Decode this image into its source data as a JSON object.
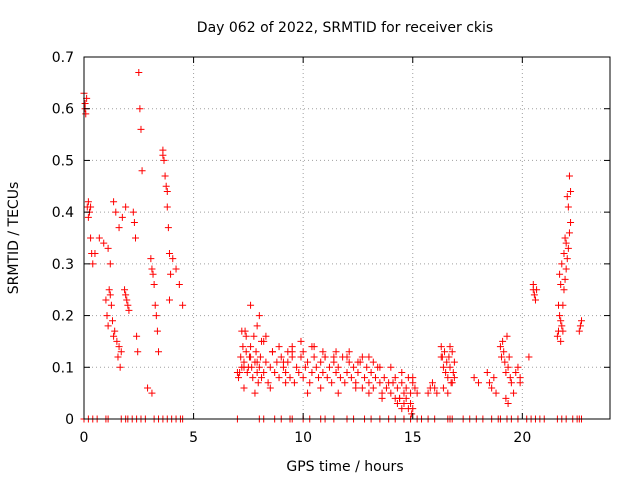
{
  "chart_data": {
    "type": "scatter",
    "title": "Day 062 of 2022, SRMTID for receiver ckis",
    "xlabel": "GPS time / hours",
    "ylabel": "SRMTID / TECUs",
    "xlim": [
      0,
      24
    ],
    "ylim": [
      0,
      0.7
    ],
    "xticks": [
      0,
      5,
      10,
      15,
      20
    ],
    "yticks": [
      0,
      0.1,
      0.2,
      0.3,
      0.4,
      0.5,
      0.6,
      0.7
    ],
    "grid": true,
    "marker": "plus",
    "colors": {
      "series": "#ff0000",
      "grid": "#a0a0a0",
      "axis": "#000000"
    },
    "series": [
      {
        "name": "SRMTID",
        "x": [
          0.0,
          0.05,
          0.05,
          0.08,
          0.12,
          0.15,
          0.2,
          0.25,
          0.3,
          0.35,
          0.4,
          0.2,
          0.3,
          0.5,
          0.7,
          0.9,
          1.1,
          1.2,
          1.35,
          1.45,
          1.6,
          1.75,
          1.9,
          1.0,
          1.05,
          1.1,
          1.15,
          1.2,
          1.25,
          1.3,
          1.35,
          1.4,
          1.5,
          1.55,
          1.6,
          1.65,
          1.7,
          1.85,
          1.9,
          1.95,
          2.0,
          2.05,
          2.25,
          2.3,
          2.35,
          2.4,
          2.45,
          2.5,
          2.55,
          2.6,
          2.65,
          2.9,
          3.1,
          3.05,
          3.1,
          3.15,
          3.2,
          3.25,
          3.3,
          3.35,
          3.4,
          3.6,
          3.65,
          3.7,
          3.75,
          3.8,
          3.85,
          3.9,
          3.95,
          3.9,
          3.6,
          3.8,
          4.05,
          4.2,
          4.35,
          4.5,
          7.0,
          7.3,
          7.6,
          7.9,
          8.2,
          8.6,
          9.1,
          9.5,
          7.05,
          7.1,
          7.15,
          7.2,
          7.25,
          7.3,
          7.35,
          7.4,
          7.45,
          7.5,
          7.55,
          7.6,
          7.65,
          7.7,
          7.75,
          7.8,
          7.85,
          7.9,
          7.95,
          8.0,
          8.05,
          8.1,
          8.2,
          8.3,
          8.4,
          8.5,
          8.6,
          8.7,
          8.8,
          8.9,
          9.0,
          9.1,
          9.2,
          9.3,
          9.4,
          9.5,
          9.6,
          9.7,
          9.8,
          9.9,
          10.0,
          10.1,
          10.2,
          10.3,
          10.4,
          10.5,
          10.6,
          10.7,
          10.8,
          10.9,
          11.0,
          11.1,
          11.2,
          11.3,
          11.4,
          11.5,
          11.6,
          11.7,
          11.8,
          11.9,
          12.0,
          12.1,
          12.2,
          12.3,
          12.4,
          12.5,
          12.6,
          12.7,
          12.8,
          12.9,
          13.0,
          13.1,
          13.2,
          13.3,
          13.4,
          13.5,
          13.6,
          13.7,
          13.8,
          13.9,
          14.0,
          14.1,
          14.2,
          14.3,
          14.4,
          14.5,
          14.6,
          14.7,
          14.8,
          14.9,
          15.0,
          15.1,
          7.2,
          7.4,
          7.6,
          7.9,
          8.0,
          8.1,
          8.3,
          8.9,
          9.3,
          9.9,
          10.4,
          10.9,
          11.4,
          12.1,
          12.7,
          13.2,
          7.3,
          7.8,
          8.5,
          9.2,
          10.2,
          10.8,
          11.6,
          12.4,
          13.0,
          13.6,
          14.2,
          14.6,
          14.3,
          14.5,
          14.7,
          14.9,
          15.0,
          15.2,
          14.8,
          14.4,
          14.95,
          9.5,
          10.0,
          10.5,
          11.0,
          11.5,
          12.0,
          12.5,
          13.0,
          13.5,
          14.0,
          14.5,
          15.0,
          15.7,
          15.8,
          15.9,
          16.0,
          16.1,
          16.3,
          16.35,
          16.4,
          16.45,
          16.5,
          16.55,
          16.6,
          16.65,
          16.7,
          16.75,
          16.8,
          16.85,
          16.9,
          16.4,
          16.6,
          16.8,
          16.3,
          16.7,
          16.9,
          17.8,
          18.0,
          18.4,
          18.5,
          18.6,
          18.7,
          18.8,
          19.0,
          19.05,
          19.1,
          19.15,
          19.2,
          19.25,
          19.3,
          19.35,
          19.4,
          19.45,
          19.5,
          19.6,
          19.25,
          19.35,
          19.7,
          19.8,
          19.9,
          19.9,
          20.3,
          20.5,
          20.5,
          20.55,
          20.6,
          20.65,
          21.6,
          21.65,
          21.7,
          21.75,
          21.8,
          21.85,
          21.9,
          21.95,
          22.0,
          22.05,
          22.1,
          22.15,
          22.2,
          21.75,
          21.85,
          21.7,
          21.8,
          21.9,
          22.0,
          22.1,
          22.2,
          21.65,
          21.75,
          21.95,
          22.05,
          22.15,
          22.6,
          22.65,
          22.7,
          0.0,
          0.2,
          0.4,
          0.6,
          1.0,
          1.1,
          1.7,
          1.9,
          2.0,
          2.2,
          2.4,
          2.6,
          2.8,
          3.2,
          3.4,
          3.6,
          3.8,
          4.0,
          4.2,
          4.4,
          4.5,
          7.0,
          8.0,
          8.2,
          8.7,
          9.0,
          9.4,
          9.5,
          10.0,
          10.3,
          10.8,
          11.0,
          11.4,
          12.0,
          12.3,
          12.8,
          13.1,
          13.5,
          13.9,
          14.2,
          14.6,
          14.9,
          15.2,
          15.4,
          15.7,
          16.0,
          16.6,
          16.7,
          16.8,
          17.3,
          17.6,
          17.9,
          18.2,
          18.6,
          18.9,
          19.0,
          19.3,
          19.5,
          19.8,
          20.2,
          20.4,
          20.6,
          20.8,
          21.0,
          21.6,
          21.8,
          22.0,
          22.3,
          22.5,
          22.6,
          22.7
        ],
        "y": [
          0.63,
          0.6,
          0.61,
          0.59,
          0.62,
          0.41,
          0.42,
          0.4,
          0.35,
          0.32,
          0.3,
          0.39,
          0.41,
          0.32,
          0.35,
          0.34,
          0.33,
          0.3,
          0.42,
          0.4,
          0.37,
          0.39,
          0.41,
          0.23,
          0.2,
          0.18,
          0.25,
          0.24,
          0.22,
          0.19,
          0.16,
          0.17,
          0.15,
          0.12,
          0.14,
          0.1,
          0.13,
          0.25,
          0.24,
          0.23,
          0.22,
          0.21,
          0.4,
          0.38,
          0.35,
          0.16,
          0.13,
          0.67,
          0.6,
          0.56,
          0.48,
          0.06,
          0.05,
          0.31,
          0.29,
          0.28,
          0.26,
          0.22,
          0.2,
          0.17,
          0.13,
          0.51,
          0.5,
          0.47,
          0.45,
          0.41,
          0.37,
          0.32,
          0.28,
          0.23,
          0.52,
          0.44,
          0.31,
          0.29,
          0.26,
          0.22,
          0.09,
          0.1,
          0.12,
          0.11,
          0.15,
          0.13,
          0.11,
          0.12,
          0.08,
          0.09,
          0.12,
          0.1,
          0.14,
          0.11,
          0.17,
          0.13,
          0.09,
          0.1,
          0.12,
          0.14,
          0.1,
          0.08,
          0.16,
          0.11,
          0.13,
          0.09,
          0.07,
          0.1,
          0.12,
          0.08,
          0.09,
          0.11,
          0.07,
          0.1,
          0.13,
          0.09,
          0.11,
          0.08,
          0.12,
          0.1,
          0.09,
          0.11,
          0.08,
          0.13,
          0.07,
          0.1,
          0.09,
          0.12,
          0.08,
          0.1,
          0.11,
          0.07,
          0.09,
          0.12,
          0.1,
          0.08,
          0.11,
          0.09,
          0.12,
          0.08,
          0.1,
          0.07,
          0.11,
          0.09,
          0.1,
          0.08,
          0.12,
          0.07,
          0.09,
          0.11,
          0.08,
          0.1,
          0.07,
          0.09,
          0.11,
          0.06,
          0.08,
          0.1,
          0.07,
          0.09,
          0.06,
          0.08,
          0.1,
          0.07,
          0.05,
          0.08,
          0.06,
          0.07,
          0.05,
          0.07,
          0.08,
          0.06,
          0.04,
          0.07,
          0.05,
          0.06,
          0.08,
          0.05,
          0.07,
          0.06,
          0.17,
          0.16,
          0.22,
          0.18,
          0.2,
          0.15,
          0.16,
          0.14,
          0.13,
          0.15,
          0.14,
          0.13,
          0.12,
          0.13,
          0.12,
          0.11,
          0.06,
          0.05,
          0.06,
          0.07,
          0.05,
          0.06,
          0.05,
          0.06,
          0.05,
          0.04,
          0.04,
          0.03,
          0.03,
          0.02,
          0.04,
          0.03,
          0.02,
          0.05,
          0.02,
          0.04,
          0.01,
          0.14,
          0.13,
          0.14,
          0.12,
          0.13,
          0.12,
          0.11,
          0.12,
          0.1,
          0.1,
          0.09,
          0.08,
          0.05,
          0.06,
          0.07,
          0.06,
          0.05,
          0.14,
          0.12,
          0.1,
          0.13,
          0.09,
          0.11,
          0.08,
          0.12,
          0.1,
          0.07,
          0.13,
          0.09,
          0.11,
          0.06,
          0.05,
          0.07,
          0.12,
          0.14,
          0.08,
          0.08,
          0.07,
          0.09,
          0.07,
          0.06,
          0.08,
          0.05,
          0.14,
          0.12,
          0.15,
          0.13,
          0.11,
          0.09,
          0.16,
          0.1,
          0.12,
          0.08,
          0.07,
          0.05,
          0.04,
          0.03,
          0.09,
          0.1,
          0.08,
          0.07,
          0.12,
          0.26,
          0.25,
          0.24,
          0.23,
          0.25,
          0.16,
          0.17,
          0.2,
          0.19,
          0.18,
          0.22,
          0.25,
          0.27,
          0.29,
          0.31,
          0.33,
          0.36,
          0.38,
          0.15,
          0.17,
          0.28,
          0.3,
          0.32,
          0.34,
          0.41,
          0.44,
          0.22,
          0.26,
          0.35,
          0.43,
          0.47,
          0.17,
          0.18,
          0.19,
          0,
          0,
          0,
          0,
          0,
          0,
          0,
          0,
          0,
          0,
          0,
          0,
          0,
          0,
          0,
          0,
          0,
          0,
          0,
          0,
          0,
          0,
          0,
          0,
          0,
          0,
          0,
          0,
          0,
          0,
          0,
          0,
          0,
          0,
          0,
          0,
          0,
          0,
          0,
          0,
          0,
          0,
          0,
          0,
          0,
          0,
          0,
          0,
          0,
          0,
          0,
          0,
          0,
          0,
          0,
          0,
          0,
          0,
          0,
          0,
          0,
          0,
          0,
          0,
          0,
          0,
          0,
          0,
          0,
          0,
          0
        ]
      }
    ]
  }
}
